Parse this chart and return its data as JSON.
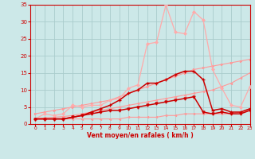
{
  "x": [
    0,
    1,
    2,
    3,
    4,
    5,
    6,
    7,
    8,
    9,
    10,
    11,
    12,
    13,
    14,
    15,
    16,
    17,
    18,
    19,
    20,
    21,
    22,
    23
  ],
  "line_gust_peak": [
    1.5,
    3.0,
    2.5,
    3.0,
    5.5,
    5.0,
    5.5,
    5.5,
    7.0,
    7.5,
    10.5,
    11.5,
    23.5,
    24.0,
    35.0,
    27.0,
    26.5,
    33.0,
    30.5,
    16.0,
    10.5,
    5.5,
    5.0,
    11.0
  ],
  "line_trend_upper": [
    3.0,
    3.5,
    4.0,
    4.5,
    5.0,
    5.5,
    6.0,
    6.5,
    7.0,
    8.0,
    9.0,
    10.0,
    11.0,
    12.0,
    13.0,
    14.0,
    15.0,
    16.0,
    16.5,
    17.0,
    17.5,
    18.0,
    18.5,
    19.0
  ],
  "line_trend_lower": [
    1.5,
    1.8,
    2.0,
    2.2,
    2.5,
    3.0,
    3.5,
    4.0,
    4.5,
    5.0,
    5.5,
    6.0,
    6.5,
    7.0,
    7.5,
    8.0,
    8.5,
    9.0,
    9.5,
    10.0,
    11.0,
    12.0,
    13.5,
    15.0
  ],
  "line_red_upper": [
    1.5,
    1.5,
    1.5,
    1.5,
    2.0,
    2.5,
    3.5,
    4.5,
    5.5,
    7.0,
    9.0,
    10.0,
    12.0,
    12.0,
    13.0,
    14.5,
    15.5,
    15.5,
    13.0,
    4.0,
    4.5,
    3.5,
    3.5,
    4.5
  ],
  "line_red_lower": [
    1.5,
    1.5,
    1.5,
    1.5,
    2.0,
    2.5,
    3.0,
    3.5,
    4.0,
    4.0,
    4.5,
    5.0,
    5.5,
    6.0,
    6.5,
    7.0,
    7.5,
    8.0,
    3.5,
    3.0,
    3.5,
    3.0,
    3.0,
    4.0
  ],
  "line_flat_low": [
    1.5,
    1.5,
    1.5,
    1.5,
    1.5,
    1.5,
    1.5,
    1.5,
    1.5,
    1.5,
    2.0,
    2.0,
    2.0,
    2.0,
    2.5,
    2.5,
    3.0,
    3.0,
    3.0,
    3.0,
    3.0,
    3.0,
    3.5,
    4.0
  ],
  "bg_color": "#cce8e8",
  "grid_color": "#aacccc",
  "color_light_pink": "#ff9999",
  "color_dark_red": "#cc0000",
  "color_mid_pink": "#ffaaaa",
  "xlabel": "Vent moyen/en rafales ( km/h )",
  "axis_color": "#cc0000",
  "xlim": [
    -0.5,
    23
  ],
  "ylim": [
    0,
    35
  ],
  "yticks": [
    0,
    5,
    10,
    15,
    20,
    25,
    30,
    35
  ]
}
